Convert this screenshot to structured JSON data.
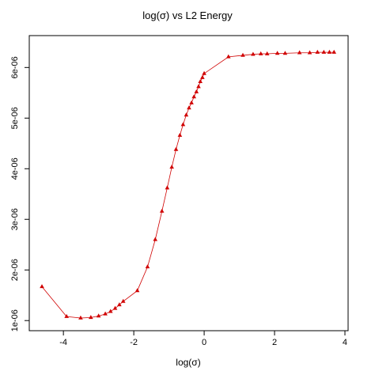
{
  "chart_data": {
    "type": "line",
    "title": "log(σ) vs L2 Energy",
    "x_label": "log(σ)",
    "x": [
      -4.61,
      -3.91,
      -3.51,
      -3.22,
      -3.0,
      -2.81,
      -2.66,
      -2.53,
      -2.41,
      -2.3,
      -1.9,
      -1.61,
      -1.39,
      -1.2,
      -1.05,
      -0.92,
      -0.8,
      -0.69,
      -0.6,
      -0.51,
      -0.43,
      -0.36,
      -0.29,
      -0.22,
      -0.16,
      -0.11,
      -0.05,
      0,
      0.69,
      1.1,
      1.39,
      1.61,
      1.79,
      2.08,
      2.3,
      2.71,
      3.0,
      3.22,
      3.4,
      3.56,
      3.69
    ],
    "series": [
      {
        "color": "#d00000",
        "values": [
          1.67e-06,
          1.08e-06,
          1.05e-06,
          1.06e-06,
          1.09e-06,
          1.13e-06,
          1.18e-06,
          1.24e-06,
          1.31e-06,
          1.38e-06,
          1.59e-06,
          2.06e-06,
          2.6e-06,
          3.16e-06,
          3.62e-06,
          4.03e-06,
          4.38e-06,
          4.66e-06,
          4.87e-06,
          5.06e-06,
          5.2e-06,
          5.3e-06,
          5.42e-06,
          5.52e-06,
          5.62e-06,
          5.72e-06,
          5.8e-06,
          5.88e-06,
          6.21e-06,
          6.24e-06,
          6.26e-06,
          6.27e-06,
          6.27e-06,
          6.28e-06,
          6.28e-06,
          6.29e-06,
          6.29e-06,
          6.3e-06,
          6.3e-06,
          6.3e-06,
          6.3e-06
        ]
      }
    ],
    "xlim": [
      -4.97,
      4.09
    ],
    "xticks": [
      -4,
      -2,
      0,
      2,
      4
    ],
    "ylim": [
      8e-07,
      6.63e-06
    ],
    "yticks": [
      {
        "value": 1e-06,
        "label": "1e-06"
      },
      {
        "value": 2e-06,
        "label": "2e-06"
      },
      {
        "value": 3e-06,
        "label": "3e-06"
      },
      {
        "value": 4e-06,
        "label": "4e-06"
      },
      {
        "value": 5e-06,
        "label": "5e-06"
      },
      {
        "value": 6e-06,
        "label": "6e-06"
      }
    ]
  }
}
